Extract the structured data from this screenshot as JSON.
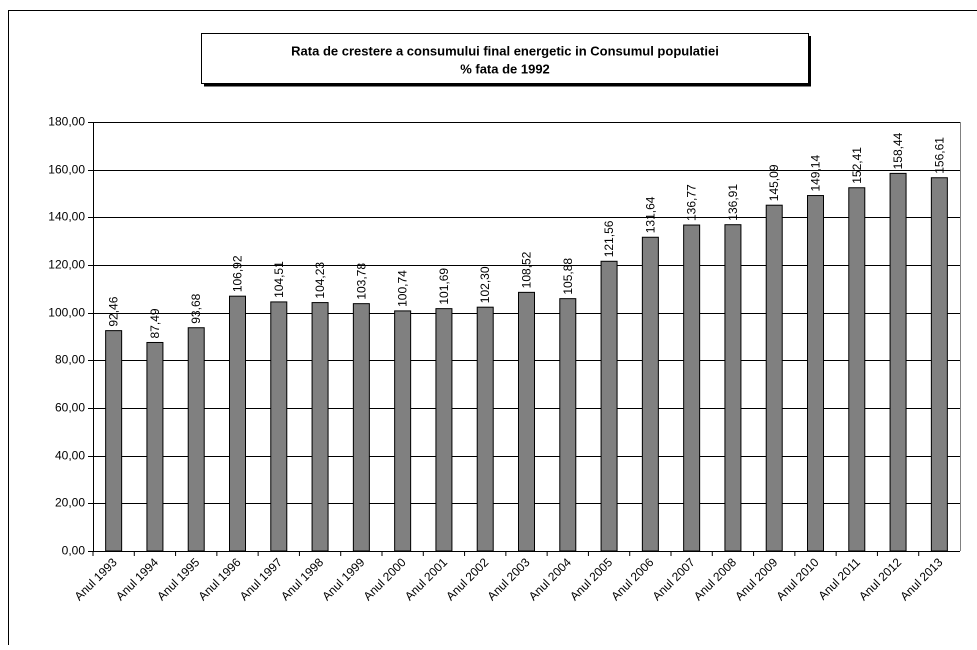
{
  "chart_data": {
    "type": "bar",
    "title": "Rata de crestere a consumului final energetic in Consumul populatiei",
    "subtitle": "% fata de 1992",
    "categories": [
      "Anul 1993",
      "Anul 1994",
      "Anul 1995",
      "Anul 1996",
      "Anul 1997",
      "Anul 1998",
      "Anul 1999",
      "Anul 2000",
      "Anul 2001",
      "Anul 2002",
      "Anul 2003",
      "Anul 2004",
      "Anul 2005",
      "Anul 2006",
      "Anul 2007",
      "Anul 2008",
      "Anul 2009",
      "Anul 2010",
      "Anul 2011",
      "Anul 2012",
      "Anul 2013"
    ],
    "values": [
      92.46,
      87.49,
      93.68,
      106.92,
      104.51,
      104.23,
      103.78,
      100.74,
      101.69,
      102.3,
      108.52,
      105.88,
      121.56,
      131.64,
      136.77,
      136.91,
      145.09,
      149.14,
      152.41,
      158.44,
      156.61
    ],
    "value_labels": [
      "92,46",
      "87,49",
      "93,68",
      "106,92",
      "104,51",
      "104,23",
      "103,78",
      "100,74",
      "101,69",
      "102,30",
      "108,52",
      "105,88",
      "121,56",
      "131,64",
      "136,77",
      "136,91",
      "145,09",
      "149,14",
      "152,41",
      "158,44",
      "156,61"
    ],
    "color": "#808080",
    "ylim": [
      0,
      180
    ],
    "yticks": [
      {
        "value": 0,
        "label": "0,00"
      },
      {
        "value": 20,
        "label": "20,00"
      },
      {
        "value": 40,
        "label": "40,00"
      },
      {
        "value": 60,
        "label": "60,00"
      },
      {
        "value": 80,
        "label": "80,00"
      },
      {
        "value": 100,
        "label": "100,00"
      },
      {
        "value": 120,
        "label": "120,00"
      },
      {
        "value": 140,
        "label": "140,00"
      },
      {
        "value": 160,
        "label": "160,00"
      },
      {
        "value": 180,
        "label": "180,00"
      }
    ],
    "grid": true
  }
}
